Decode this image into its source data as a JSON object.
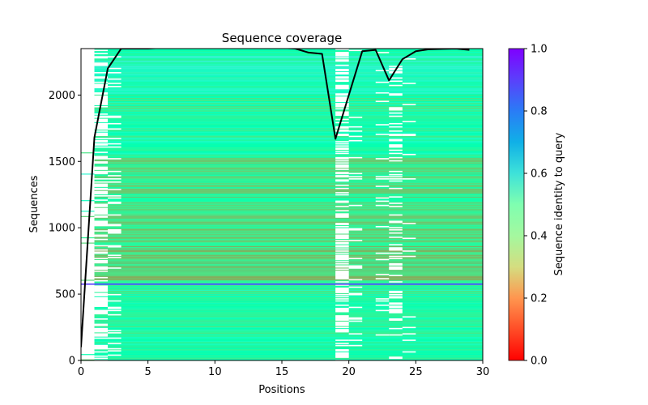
{
  "chart_data": {
    "type": "heatmap",
    "title": "Sequence coverage",
    "xlabel": "Positions",
    "ylabel": "Sequences",
    "xlim": [
      0,
      30
    ],
    "ylim": [
      0,
      2350
    ],
    "xticks": [
      0,
      5,
      10,
      15,
      20,
      25,
      30
    ],
    "yticks": [
      0,
      500,
      1000,
      1500,
      2000
    ],
    "colorbar": {
      "label": "Sequence identity to query",
      "range": [
        0.0,
        1.0
      ],
      "ticks": [
        "0.0",
        "0.2",
        "0.4",
        "0.6",
        "0.8",
        "1.0"
      ],
      "colormap": "rainbow_r"
    },
    "highlight_row": {
      "y": 575,
      "color": "#5b3cff"
    },
    "identity_bands": [
      {
        "y0": 0,
        "y1": 575,
        "identity": 0.45
      },
      {
        "y0": 575,
        "y1": 1100,
        "identity": 0.33
      },
      {
        "y0": 1100,
        "y1": 1550,
        "identity": 0.38
      },
      {
        "y0": 1550,
        "y1": 2000,
        "identity": 0.45
      },
      {
        "y0": 2000,
        "y1": 2350,
        "identity": 0.52
      }
    ],
    "coverage_series": {
      "name": "coverage",
      "color": "#000000",
      "x": [
        0,
        1,
        2,
        3,
        4,
        5,
        6,
        7,
        8,
        9,
        10,
        11,
        12,
        13,
        14,
        15,
        16,
        17,
        18,
        19,
        20,
        21,
        22,
        23,
        24,
        25,
        26,
        27,
        28,
        29
      ],
      "y": [
        100,
        1680,
        2200,
        2350,
        2350,
        2350,
        2355,
        2355,
        2355,
        2355,
        2355,
        2355,
        2355,
        2355,
        2355,
        2355,
        2350,
        2320,
        2310,
        1670,
        2000,
        2330,
        2340,
        2110,
        2270,
        2330,
        2345,
        2348,
        2350,
        2340
      ]
    }
  }
}
